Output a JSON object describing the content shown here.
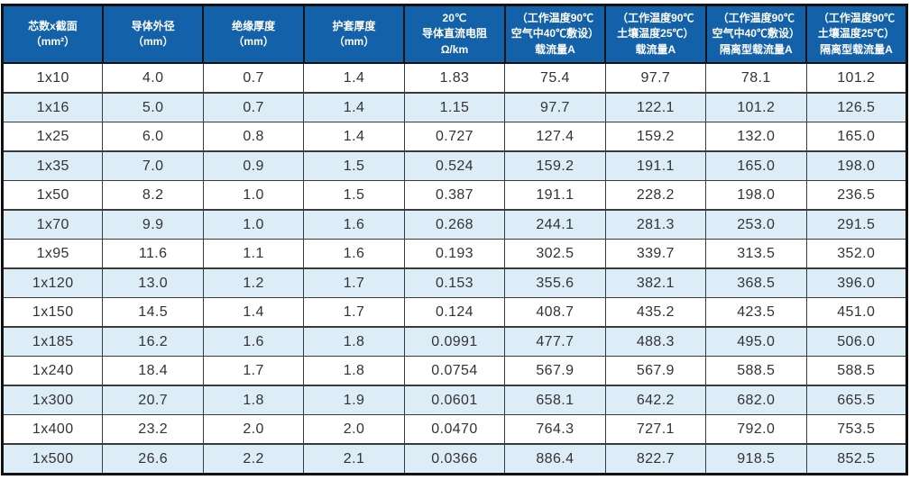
{
  "table": {
    "colors": {
      "header_bg": "#1361a8",
      "header_text": "#ffffff",
      "row_bg": "#ffffff",
      "row_alt_bg": "#ddedf8",
      "border": "#121212",
      "body_text": "#333333"
    },
    "headers": [
      {
        "lines": [
          "芯数x截面",
          "（mm²）"
        ]
      },
      {
        "lines": [
          "导体外径",
          "（mm）"
        ]
      },
      {
        "lines": [
          "绝缘厚度",
          "（mm）"
        ]
      },
      {
        "lines": [
          "护套厚度",
          "（mm）"
        ]
      },
      {
        "lines": [
          "20℃",
          "导体直流电阻",
          "Ω/km"
        ]
      },
      {
        "lines": [
          "（工作温度90℃",
          "空气中40℃敷设）",
          "载流量A"
        ]
      },
      {
        "lines": [
          "（工作温度90℃",
          "土壤温度25℃）",
          "载流量A"
        ]
      },
      {
        "lines": [
          "（工作温度90℃",
          "空气中40℃敷设）",
          "隔离型载流量A"
        ]
      },
      {
        "lines": [
          "（工作温度90℃",
          "土壤温度25℃）",
          "隔离型载流量A"
        ]
      }
    ],
    "rows": [
      [
        "1x10",
        "4.0",
        "0.7",
        "1.4",
        "1.83",
        "75.4",
        "97.7",
        "78.1",
        "101.2"
      ],
      [
        "1x16",
        "5.0",
        "0.7",
        "1.4",
        "1.15",
        "97.7",
        "122.1",
        "101.2",
        "126.5"
      ],
      [
        "1x25",
        "6.0",
        "0.8",
        "1.4",
        "0.727",
        "127.4",
        "159.2",
        "132.0",
        "165.0"
      ],
      [
        "1x35",
        "7.0",
        "0.9",
        "1.5",
        "0.524",
        "159.2",
        "191.1",
        "165.0",
        "198.0"
      ],
      [
        "1x50",
        "8.2",
        "1.0",
        "1.5",
        "0.387",
        "191.1",
        "228.2",
        "198.0",
        "236.5"
      ],
      [
        "1x70",
        "9.9",
        "1.0",
        "1.6",
        "0.268",
        "244.1",
        "281.3",
        "253.0",
        "291.5"
      ],
      [
        "1x95",
        "11.6",
        "1.1",
        "1.6",
        "0.193",
        "302.5",
        "339.7",
        "313.5",
        "352.0"
      ],
      [
        "1x120",
        "13.0",
        "1.2",
        "1.7",
        "0.153",
        "355.6",
        "382.1",
        "368.5",
        "396.0"
      ],
      [
        "1x150",
        "14.5",
        "1.4",
        "1.7",
        "0.124",
        "408.7",
        "435.2",
        "423.5",
        "451.0"
      ],
      [
        "1x185",
        "16.2",
        "1.6",
        "1.8",
        "0.0991",
        "477.7",
        "488.3",
        "495.0",
        "506.0"
      ],
      [
        "1x240",
        "18.4",
        "1.7",
        "1.8",
        "0.0754",
        "567.9",
        "567.9",
        "588.5",
        "588.5"
      ],
      [
        "1x300",
        "20.7",
        "1.8",
        "1.9",
        "0.0601",
        "658.1",
        "642.2",
        "682.0",
        "665.5"
      ],
      [
        "1x400",
        "23.2",
        "2.0",
        "2.0",
        "0.0470",
        "764.3",
        "727.1",
        "792.0",
        "753.5"
      ],
      [
        "1x500",
        "26.6",
        "2.2",
        "2.1",
        "0.0366",
        "886.4",
        "822.7",
        "918.5",
        "852.5"
      ]
    ]
  }
}
